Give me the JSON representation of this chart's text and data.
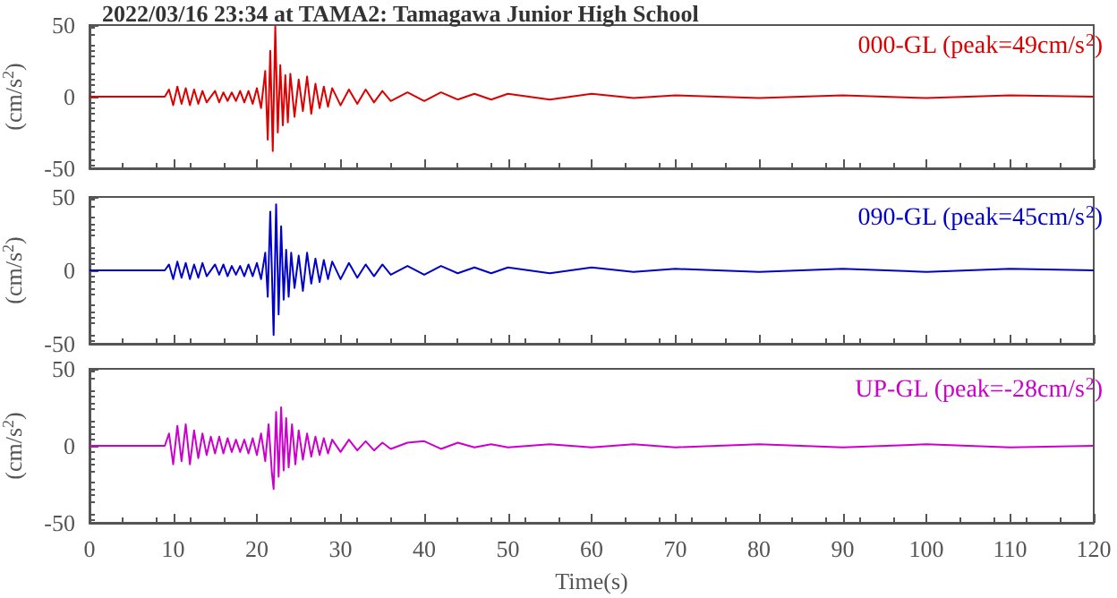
{
  "chart_data": [
    {
      "type": "line",
      "title": "2022/03/16 23:34 at TAMA2: Tamagawa Junior High School",
      "ylabel": "(cm/s$^{2}$)",
      "xlim": [
        0,
        120
      ],
      "xticks": [
        0,
        10,
        20,
        30,
        40,
        50,
        60,
        70,
        80,
        90,
        100,
        110,
        120
      ],
      "ylim": [
        -50,
        50
      ],
      "yticks": [
        -50,
        0,
        50
      ],
      "tick_labels": "y",
      "grid": false,
      "legend": "top right",
      "marker": "none",
      "series": [
        {
          "name": "000-GL (peak=49cm/s$^{2}$)",
          "color": "#dd0000",
          "x": [
            0,
            9,
            9.5,
            10,
            10.5,
            11,
            11.5,
            12,
            12.5,
            13,
            13.5,
            14,
            15,
            15.5,
            16,
            16.5,
            17,
            17.5,
            18,
            18.5,
            19,
            19.5,
            20,
            20.5,
            21,
            21.3,
            21.6,
            21.9,
            22.2,
            22.5,
            22.8,
            23.1,
            23.4,
            23.7,
            24,
            24.5,
            25,
            25.5,
            26,
            26.5,
            27,
            27.5,
            28,
            28.5,
            29,
            30,
            31,
            32,
            33,
            34,
            35,
            36,
            38,
            40,
            42,
            44,
            46,
            48,
            50,
            55,
            60,
            65,
            70,
            80,
            90,
            100,
            110,
            120
          ],
          "values": [
            0,
            0,
            5,
            -6,
            7,
            -5,
            6,
            -6,
            5,
            -5,
            4,
            -4,
            4,
            -4,
            3,
            -3,
            3,
            -3,
            4,
            -4,
            4,
            -5,
            6,
            -8,
            18,
            -30,
            32,
            -38,
            49,
            -25,
            22,
            -20,
            15,
            -18,
            16,
            -14,
            12,
            -10,
            14,
            -12,
            9,
            -8,
            7,
            -7,
            6,
            -6,
            5,
            -5,
            5,
            -4,
            4,
            -3,
            3,
            -3,
            3,
            -2,
            2,
            -2,
            2,
            -2,
            2,
            -1,
            1,
            -1,
            1,
            -1,
            1,
            0
          ]
        }
      ]
    },
    {
      "type": "line",
      "ylabel": "(cm/s$^{2}$)",
      "xlim": [
        0,
        120
      ],
      "xticks": [
        0,
        10,
        20,
        30,
        40,
        50,
        60,
        70,
        80,
        90,
        100,
        110,
        120
      ],
      "ylim": [
        -50,
        50
      ],
      "yticks": [
        -50,
        0,
        50
      ],
      "tick_labels": "y",
      "grid": false,
      "legend": "top right",
      "marker": "none",
      "series": [
        {
          "name": "090-GL (peak=45cm/s$^{2}$)",
          "color": "#0000cc",
          "x": [
            0,
            9,
            9.5,
            10,
            10.5,
            11,
            11.5,
            12,
            12.5,
            13,
            13.5,
            14,
            15,
            15.5,
            16,
            16.5,
            17,
            17.5,
            18,
            18.5,
            19,
            19.5,
            20,
            20.5,
            21,
            21.3,
            21.6,
            22.0,
            22.3,
            22.6,
            22.9,
            23.2,
            23.5,
            23.8,
            24.1,
            24.5,
            25,
            25.5,
            26,
            26.5,
            27,
            27.5,
            28,
            28.5,
            29,
            30,
            31,
            32,
            33,
            34,
            35,
            36,
            38,
            40,
            42,
            44,
            46,
            48,
            50,
            55,
            60,
            65,
            70,
            80,
            90,
            100,
            110,
            120
          ],
          "values": [
            0,
            0,
            4,
            -6,
            6,
            -5,
            5,
            -6,
            4,
            -5,
            5,
            -4,
            4,
            -3,
            4,
            -4,
            3,
            -3,
            3,
            -4,
            4,
            -4,
            5,
            -6,
            12,
            -18,
            40,
            -44,
            45,
            -30,
            30,
            -20,
            14,
            -18,
            12,
            -12,
            10,
            -14,
            12,
            -9,
            8,
            -8,
            7,
            -6,
            6,
            -6,
            5,
            -5,
            4,
            -4,
            4,
            -3,
            3,
            -3,
            3,
            -2,
            2,
            -2,
            2,
            -2,
            2,
            -1,
            1,
            -1,
            1,
            -1,
            1,
            0
          ]
        }
      ]
    },
    {
      "type": "line",
      "xlabel": "Time(s)",
      "ylabel": "(cm/s$^{2}$)",
      "xlim": [
        0,
        120
      ],
      "xticks": [
        0,
        10,
        20,
        30,
        40,
        50,
        60,
        70,
        80,
        90,
        100,
        110,
        120
      ],
      "ylim": [
        -50,
        50
      ],
      "yticks": [
        -50,
        0,
        50
      ],
      "grid": false,
      "legend": "top right",
      "marker": "none",
      "series": [
        {
          "name": "UP-GL (peak=-28cm/s$^{2}$)",
          "color": "#cc00cc",
          "x": [
            0,
            9,
            9.5,
            10,
            10.5,
            11,
            11.5,
            12,
            12.5,
            13,
            13.5,
            14,
            14.5,
            15,
            15.5,
            16,
            16.5,
            17,
            17.5,
            18,
            18.5,
            19,
            19.5,
            20,
            20.5,
            21,
            21.4,
            21.8,
            22.0,
            22.3,
            22.6,
            22.9,
            23.2,
            23.5,
            23.8,
            24.2,
            24.6,
            25,
            25.5,
            26,
            26.5,
            27,
            27.5,
            28,
            28.5,
            29,
            30,
            31,
            32,
            33,
            34,
            35,
            36,
            38,
            40,
            42,
            44,
            46,
            48,
            50,
            55,
            60,
            65,
            70,
            80,
            90,
            100,
            110,
            120
          ],
          "values": [
            0,
            0,
            8,
            -12,
            13,
            -10,
            14,
            -12,
            10,
            -8,
            8,
            -6,
            6,
            -5,
            6,
            -5,
            5,
            -4,
            4,
            -4,
            4,
            -5,
            5,
            -6,
            8,
            -10,
            14,
            -18,
            -28,
            22,
            -20,
            25,
            -16,
            18,
            -14,
            14,
            -12,
            10,
            -9,
            8,
            -7,
            6,
            -6,
            5,
            -5,
            4,
            -4,
            4,
            -3,
            3,
            -3,
            2,
            -2,
            2,
            3,
            -2,
            2,
            -1,
            1,
            -1,
            1,
            -1,
            1,
            -1,
            1,
            -1,
            1,
            -1,
            0
          ]
        }
      ]
    }
  ]
}
